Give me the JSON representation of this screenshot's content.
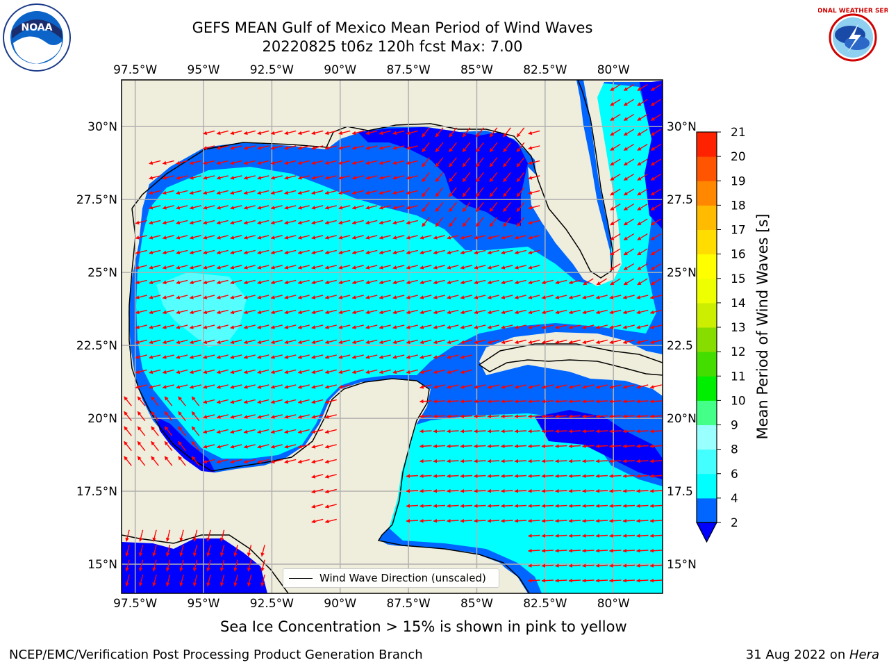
{
  "title": {
    "line1": "GEFS MEAN Gulf of Mexico Mean Period of Wind Waves",
    "line2": "20220825 t06z 120h fcst   Max: 7.00"
  },
  "logos": {
    "noaa_text": "NOAA",
    "nws_text": "NATIONAL WEATHER SERVICE"
  },
  "map": {
    "lon_ticks": [
      "97.5°W",
      "95°W",
      "92.5°W",
      "90°W",
      "87.5°W",
      "85°W",
      "82.5°W",
      "80°W"
    ],
    "lat_ticks_left": [
      "30°N",
      "27.5°N",
      "25°N",
      "22.5°N",
      "20°N",
      "17.5°N",
      "15°N"
    ],
    "lat_ticks_right": [
      "30°N",
      "27.5",
      "25°N",
      "22.5",
      "20°N",
      "17.5",
      "15°N"
    ],
    "extent": {
      "lon_min": -98,
      "lon_max": -78.2,
      "lat_min": 14,
      "lat_max": 31.6
    },
    "colors": {
      "land": "#efeddb",
      "arrow": "#ff0000",
      "grid": "#b0b0b0",
      "coast": "#000000"
    }
  },
  "colorbar": {
    "label": "Mean Period of Wind Waves [s]",
    "ticks": [
      "2",
      "4",
      "6",
      "8",
      "9",
      "10",
      "11",
      "12",
      "13",
      "14",
      "15",
      "16",
      "17",
      "18",
      "19",
      "20",
      "21"
    ],
    "colors": [
      "#0066ff",
      "#00ffff",
      "#44ffff",
      "#99ffff",
      "#44ff88",
      "#00ee00",
      "#44dd00",
      "#88dd00",
      "#ccee00",
      "#eeff00",
      "#ffff00",
      "#ffdd00",
      "#ffbb00",
      "#ff8800",
      "#ff5500",
      "#ff2200"
    ],
    "extend_color": "#0000ff"
  },
  "legend": {
    "label": "Wind Wave Direction (unscaled)"
  },
  "ice_note": "Sea Ice Concentration > 15% is shown in pink to yellow",
  "footer": {
    "left": "NCEP/EMC/Verification Post Processing Product Generation Branch",
    "right_date": "31 Aug 2022 on ",
    "right_host": "Hera"
  }
}
